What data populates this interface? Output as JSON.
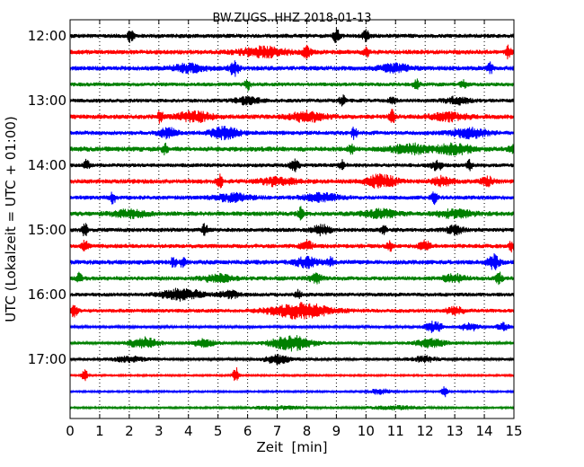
{
  "chart_data": {
    "type": "line",
    "title": "BW.ZUGS..HHZ 2018-01-13",
    "xlabel": "Zeit  [min]",
    "ylabel": "UTC (Lokalzeit = UTC + 01:00)",
    "xlim": [
      0,
      15
    ],
    "x_ticks": [
      "0",
      "1",
      "2",
      "3",
      "4",
      "5",
      "6",
      "7",
      "8",
      "9",
      "10",
      "11",
      "12",
      "13",
      "14",
      "15"
    ],
    "y_ticks": [
      "12:00",
      "13:00",
      "14:00",
      "15:00",
      "16:00",
      "17:00"
    ],
    "grid": true,
    "colors": [
      "#000000",
      "#ff0000",
      "#0000ff",
      "#008000"
    ],
    "traces": [
      {
        "time": "12:00",
        "color": "#000000",
        "noise": 2.4,
        "events": [
          {
            "t": 2.05,
            "amp": 7,
            "dur": 0.1
          },
          {
            "t": 9.0,
            "amp": 8,
            "dur": 0.1
          },
          {
            "t": 10.0,
            "amp": 6,
            "dur": 0.1
          }
        ]
      },
      {
        "time": "12:15",
        "color": "#ff0000",
        "noise": 2.6,
        "events": [
          {
            "t": 6.5,
            "amp": 5,
            "dur": 0.8
          },
          {
            "t": 8.0,
            "amp": 6,
            "dur": 0.15
          },
          {
            "t": 10.0,
            "amp": 5,
            "dur": 0.1
          },
          {
            "t": 14.8,
            "amp": 6,
            "dur": 0.1
          }
        ]
      },
      {
        "time": "12:30",
        "color": "#0000ff",
        "noise": 2.6,
        "events": [
          {
            "t": 4.0,
            "amp": 4,
            "dur": 0.6
          },
          {
            "t": 5.55,
            "amp": 8,
            "dur": 0.15
          },
          {
            "t": 11.0,
            "amp": 4,
            "dur": 0.5
          },
          {
            "t": 14.2,
            "amp": 5,
            "dur": 0.1
          }
        ]
      },
      {
        "time": "12:45",
        "color": "#008000",
        "noise": 2.2,
        "events": [
          {
            "t": 6.0,
            "amp": 6,
            "dur": 0.1
          },
          {
            "t": 11.7,
            "amp": 5,
            "dur": 0.1
          },
          {
            "t": 13.3,
            "amp": 5,
            "dur": 0.1
          }
        ]
      },
      {
        "time": "13:00",
        "color": "#000000",
        "noise": 2.2,
        "events": [
          {
            "t": 6.0,
            "amp": 4,
            "dur": 0.4
          },
          {
            "t": 9.2,
            "amp": 6,
            "dur": 0.1
          },
          {
            "t": 10.9,
            "amp": 5,
            "dur": 0.1
          },
          {
            "t": 13.1,
            "amp": 4,
            "dur": 0.4
          }
        ]
      },
      {
        "time": "13:15",
        "color": "#ff0000",
        "noise": 2.6,
        "events": [
          {
            "t": 3.05,
            "amp": 6,
            "dur": 0.1
          },
          {
            "t": 4.2,
            "amp": 5,
            "dur": 0.6
          },
          {
            "t": 8.0,
            "amp": 5,
            "dur": 0.6
          },
          {
            "t": 10.9,
            "amp": 7,
            "dur": 0.1
          },
          {
            "t": 12.8,
            "amp": 4,
            "dur": 0.6
          }
        ]
      },
      {
        "time": "13:30",
        "color": "#0000ff",
        "noise": 2.4,
        "events": [
          {
            "t": 3.3,
            "amp": 5,
            "dur": 0.3
          },
          {
            "t": 5.2,
            "amp": 6,
            "dur": 0.5
          },
          {
            "t": 9.6,
            "amp": 6,
            "dur": 0.1
          },
          {
            "t": 13.5,
            "amp": 5,
            "dur": 0.6
          }
        ]
      },
      {
        "time": "13:45",
        "color": "#008000",
        "noise": 2.8,
        "events": [
          {
            "t": 3.2,
            "amp": 5,
            "dur": 0.1
          },
          {
            "t": 9.5,
            "amp": 5,
            "dur": 0.1
          },
          {
            "t": 11.5,
            "amp": 5,
            "dur": 0.6
          },
          {
            "t": 13.0,
            "amp": 5,
            "dur": 0.6
          },
          {
            "t": 14.9,
            "amp": 5,
            "dur": 0.1
          }
        ]
      },
      {
        "time": "14:00",
        "color": "#000000",
        "noise": 2.2,
        "events": [
          {
            "t": 0.55,
            "amp": 6,
            "dur": 0.1
          },
          {
            "t": 7.6,
            "amp": 6,
            "dur": 0.15
          },
          {
            "t": 9.2,
            "amp": 5,
            "dur": 0.1
          },
          {
            "t": 12.4,
            "amp": 5,
            "dur": 0.2
          },
          {
            "t": 13.5,
            "amp": 5,
            "dur": 0.1
          }
        ]
      },
      {
        "time": "14:15",
        "color": "#ff0000",
        "noise": 2.6,
        "events": [
          {
            "t": 5.05,
            "amp": 7,
            "dur": 0.1
          },
          {
            "t": 7.0,
            "amp": 4,
            "dur": 0.6
          },
          {
            "t": 10.5,
            "amp": 7,
            "dur": 0.5
          },
          {
            "t": 12.6,
            "amp": 5,
            "dur": 0.3
          },
          {
            "t": 14.1,
            "amp": 5,
            "dur": 0.2
          }
        ]
      },
      {
        "time": "14:30",
        "color": "#0000ff",
        "noise": 2.4,
        "events": [
          {
            "t": 1.45,
            "amp": 6,
            "dur": 0.1
          },
          {
            "t": 5.5,
            "amp": 4,
            "dur": 0.6
          },
          {
            "t": 8.5,
            "amp": 4,
            "dur": 0.6
          },
          {
            "t": 12.3,
            "amp": 6,
            "dur": 0.1
          }
        ]
      },
      {
        "time": "14:45",
        "color": "#008000",
        "noise": 2.6,
        "events": [
          {
            "t": 2.0,
            "amp": 4,
            "dur": 0.6
          },
          {
            "t": 7.8,
            "amp": 6,
            "dur": 0.1
          },
          {
            "t": 10.5,
            "amp": 4,
            "dur": 0.6
          },
          {
            "t": 13.0,
            "amp": 4,
            "dur": 0.6
          }
        ]
      },
      {
        "time": "15:00",
        "color": "#000000",
        "noise": 2.4,
        "events": [
          {
            "t": 0.5,
            "amp": 6,
            "dur": 0.1
          },
          {
            "t": 4.55,
            "amp": 6,
            "dur": 0.1
          },
          {
            "t": 8.5,
            "amp": 5,
            "dur": 0.3
          },
          {
            "t": 10.6,
            "amp": 5,
            "dur": 0.1
          },
          {
            "t": 13.0,
            "amp": 4,
            "dur": 0.3
          }
        ]
      },
      {
        "time": "15:15",
        "color": "#ff0000",
        "noise": 2.4,
        "events": [
          {
            "t": 0.5,
            "amp": 6,
            "dur": 0.1
          },
          {
            "t": 8.0,
            "amp": 5,
            "dur": 0.2
          },
          {
            "t": 10.8,
            "amp": 5,
            "dur": 0.1
          },
          {
            "t": 12.0,
            "amp": 5,
            "dur": 0.2
          },
          {
            "t": 14.9,
            "amp": 5,
            "dur": 0.1
          }
        ]
      },
      {
        "time": "15:30",
        "color": "#0000ff",
        "noise": 2.6,
        "events": [
          {
            "t": 3.5,
            "amp": 5,
            "dur": 0.1
          },
          {
            "t": 3.8,
            "amp": 5,
            "dur": 0.1
          },
          {
            "t": 8.0,
            "amp": 5,
            "dur": 0.4
          },
          {
            "t": 8.8,
            "amp": 5,
            "dur": 0.1
          },
          {
            "t": 14.3,
            "amp": 8,
            "dur": 0.2
          }
        ]
      },
      {
        "time": "15:45",
        "color": "#008000",
        "noise": 2.4,
        "events": [
          {
            "t": 0.3,
            "amp": 5,
            "dur": 0.1
          },
          {
            "t": 5.0,
            "amp": 4,
            "dur": 0.5
          },
          {
            "t": 8.3,
            "amp": 5,
            "dur": 0.2
          },
          {
            "t": 13.0,
            "amp": 4,
            "dur": 0.4
          },
          {
            "t": 14.5,
            "amp": 6,
            "dur": 0.1
          }
        ]
      },
      {
        "time": "16:00",
        "color": "#000000",
        "noise": 2.2,
        "events": [
          {
            "t": 3.8,
            "amp": 6,
            "dur": 0.7
          },
          {
            "t": 5.4,
            "amp": 4,
            "dur": 0.3
          },
          {
            "t": 7.7,
            "amp": 5,
            "dur": 0.1
          }
        ]
      },
      {
        "time": "16:15",
        "color": "#ff0000",
        "noise": 2.2,
        "events": [
          {
            "t": 0.15,
            "amp": 8,
            "dur": 0.1
          },
          {
            "t": 7.8,
            "amp": 8,
            "dur": 1.0
          },
          {
            "t": 13.0,
            "amp": 4,
            "dur": 0.3
          }
        ]
      },
      {
        "time": "16:30",
        "color": "#0000ff",
        "noise": 1.4,
        "events": [
          {
            "t": 12.3,
            "amp": 6,
            "dur": 0.3
          },
          {
            "t": 13.5,
            "amp": 5,
            "dur": 0.3
          },
          {
            "t": 14.6,
            "amp": 5,
            "dur": 0.2
          }
        ]
      },
      {
        "time": "16:45",
        "color": "#008000",
        "noise": 1.6,
        "events": [
          {
            "t": 2.5,
            "amp": 6,
            "dur": 0.5
          },
          {
            "t": 4.5,
            "amp": 4,
            "dur": 0.4
          },
          {
            "t": 7.5,
            "amp": 8,
            "dur": 0.7
          },
          {
            "t": 12.2,
            "amp": 5,
            "dur": 0.5
          }
        ]
      },
      {
        "time": "17:00",
        "color": "#000000",
        "noise": 1.6,
        "events": [
          {
            "t": 2.0,
            "amp": 3,
            "dur": 0.5
          },
          {
            "t": 7.0,
            "amp": 5,
            "dur": 0.4
          },
          {
            "t": 12.0,
            "amp": 3,
            "dur": 0.4
          }
        ]
      },
      {
        "time": "17:15",
        "color": "#ff0000",
        "noise": 1.0,
        "events": [
          {
            "t": 0.5,
            "amp": 7,
            "dur": 0.1
          },
          {
            "t": 5.6,
            "amp": 9,
            "dur": 0.1
          }
        ]
      },
      {
        "time": "17:30",
        "color": "#0000ff",
        "noise": 1.0,
        "events": [
          {
            "t": 10.5,
            "amp": 3,
            "dur": 0.4
          },
          {
            "t": 12.65,
            "amp": 6,
            "dur": 0.1
          }
        ]
      },
      {
        "time": "17:45",
        "color": "#008000",
        "noise": 1.0,
        "events": [
          {
            "t": 7.0,
            "amp": 2,
            "dur": 1.0
          },
          {
            "t": 11.0,
            "amp": 2,
            "dur": 1.0
          }
        ]
      }
    ]
  }
}
